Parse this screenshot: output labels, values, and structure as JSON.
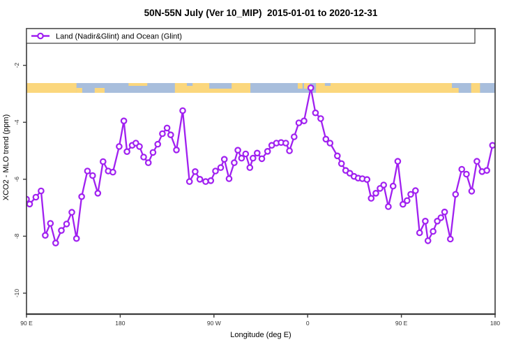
{
  "chart_data": {
    "type": "line",
    "title": "50N-55N July (Ver 10_MIP)  2015-01-01 to 2020-12-31",
    "xlabel": "Longitude (deg E)",
    "ylabel": "XCO2 - MLO trend (ppm)",
    "xlim": [
      90,
      540
    ],
    "ylim": [
      -10.7,
      -0.7
    ],
    "grid": "off",
    "x_ticks": [
      {
        "lon": 90,
        "label": "90 E"
      },
      {
        "lon": 180,
        "label": "180"
      },
      {
        "lon": 270,
        "label": "90 W"
      },
      {
        "lon": 360,
        "label": "0"
      },
      {
        "lon": 450,
        "label": "90 E"
      },
      {
        "lon": 540,
        "label": "180"
      }
    ],
    "y_ticks": [
      {
        "value": -2,
        "label": "-2"
      },
      {
        "value": -4,
        "label": "-4"
      },
      {
        "value": -6,
        "label": "-6"
      },
      {
        "value": -8,
        "label": "-8"
      },
      {
        "value": -10,
        "label": "-10"
      }
    ],
    "legend": {
      "position": "top",
      "entries": [
        {
          "label": "Land (Nadir&Glint) and Ocean (Glint)",
          "color": "#A020F0",
          "marker": "open-circle-line"
        }
      ]
    },
    "series": [
      {
        "name": "Land (Nadir&Glint) and Ocean (Glint)",
        "color": "#A020F0",
        "marker": "open-circle",
        "points": [
          [
            90,
            -6.7
          ],
          [
            93,
            -6.87
          ],
          [
            99,
            -6.63
          ],
          [
            104,
            -6.41
          ],
          [
            108,
            -7.97
          ],
          [
            113,
            -7.55
          ],
          [
            118,
            -8.24
          ],
          [
            123.5,
            -7.8
          ],
          [
            128.5,
            -7.57
          ],
          [
            133.5,
            -7.16
          ],
          [
            138,
            -8.08
          ],
          [
            143,
            -6.61
          ],
          [
            148.5,
            -5.71
          ],
          [
            153.5,
            -5.87
          ],
          [
            158.5,
            -6.49
          ],
          [
            163.5,
            -5.38
          ],
          [
            168.5,
            -5.71
          ],
          [
            173,
            -5.75
          ],
          [
            179,
            -4.85
          ],
          [
            183.5,
            -3.95
          ],
          [
            186.5,
            -5.03
          ],
          [
            191.5,
            -4.81
          ],
          [
            195,
            -4.73
          ],
          [
            198.5,
            -4.85
          ],
          [
            202.5,
            -5.22
          ],
          [
            207,
            -5.42
          ],
          [
            211.5,
            -5.06
          ],
          [
            216,
            -4.77
          ],
          [
            220.5,
            -4.4
          ],
          [
            225,
            -4.2
          ],
          [
            228.5,
            -4.44
          ],
          [
            234,
            -4.97
          ],
          [
            240,
            -3.59
          ],
          [
            246.5,
            -6.08
          ],
          [
            252,
            -5.73
          ],
          [
            256.5,
            -6.0
          ],
          [
            262,
            -6.08
          ],
          [
            267,
            -6.05
          ],
          [
            271.5,
            -5.71
          ],
          [
            276.5,
            -5.59
          ],
          [
            280,
            -5.3
          ],
          [
            284.5,
            -5.98
          ],
          [
            289.5,
            -5.42
          ],
          [
            293,
            -4.98
          ],
          [
            296.5,
            -5.26
          ],
          [
            300.5,
            -5.11
          ],
          [
            304.5,
            -5.59
          ],
          [
            307.5,
            -5.26
          ],
          [
            311.5,
            -5.08
          ],
          [
            316,
            -5.28
          ],
          [
            321.5,
            -5.02
          ],
          [
            325.5,
            -4.81
          ],
          [
            330,
            -4.73
          ],
          [
            334.5,
            -4.71
          ],
          [
            339,
            -4.73
          ],
          [
            342.5,
            -5.0
          ],
          [
            347,
            -4.51
          ],
          [
            351.5,
            -4.02
          ],
          [
            356.5,
            -3.95
          ],
          [
            363,
            -2.79
          ],
          [
            367.5,
            -3.67
          ],
          [
            372.5,
            -3.87
          ],
          [
            377.5,
            -4.59
          ],
          [
            381.5,
            -4.73
          ],
          [
            388.5,
            -5.18
          ],
          [
            392.5,
            -5.45
          ],
          [
            396.5,
            -5.69
          ],
          [
            400.5,
            -5.79
          ],
          [
            404.5,
            -5.9
          ],
          [
            408.5,
            -5.96
          ],
          [
            412.5,
            -5.98
          ],
          [
            417,
            -6.01
          ],
          [
            421,
            -6.67
          ],
          [
            425.5,
            -6.49
          ],
          [
            429.5,
            -6.32
          ],
          [
            433,
            -6.2
          ],
          [
            437.5,
            -6.96
          ],
          [
            442,
            -6.24
          ],
          [
            446.5,
            -5.37
          ],
          [
            451.5,
            -6.88
          ],
          [
            455.5,
            -6.75
          ],
          [
            459,
            -6.53
          ],
          [
            463.5,
            -6.4
          ],
          [
            467.5,
            -7.88
          ],
          [
            473,
            -7.47
          ],
          [
            475.5,
            -8.16
          ],
          [
            480.5,
            -7.83
          ],
          [
            484.5,
            -7.47
          ],
          [
            488,
            -7.35
          ],
          [
            491.5,
            -7.15
          ],
          [
            497,
            -8.1
          ],
          [
            502,
            -6.53
          ],
          [
            508,
            -5.65
          ],
          [
            512.5,
            -5.82
          ],
          [
            517.5,
            -6.42
          ],
          [
            522.5,
            -5.37
          ],
          [
            527.5,
            -5.73
          ],
          [
            532,
            -5.69
          ],
          [
            537.5,
            -4.81
          ]
        ]
      }
    ],
    "map_strip": {
      "description": "50N-55N latitude land/ocean strip",
      "land_color": "#FBD77D",
      "ocean_color": "#A8BEDC",
      "land_segments": [
        {
          "from": 90,
          "to": 138,
          "band": "full"
        },
        {
          "from": 138,
          "to": 143.5,
          "band": "south"
        },
        {
          "from": 155.5,
          "to": 165,
          "band": "south"
        },
        {
          "from": 188,
          "to": 206,
          "band": "north-sliver"
        },
        {
          "from": 232.5,
          "to": 305,
          "band": "full"
        },
        {
          "from": 350.5,
          "to": 355,
          "band": "north"
        },
        {
          "from": 356.5,
          "to": 362,
          "band": "north"
        },
        {
          "from": 368,
          "to": 498.5,
          "band": "full"
        },
        {
          "from": 498.5,
          "to": 505,
          "band": "south"
        },
        {
          "from": 517,
          "to": 525.5,
          "band": "full"
        }
      ],
      "ocean_overlays": [
        {
          "from": 244,
          "to": 249.5,
          "band": "north-sliver"
        },
        {
          "from": 265.5,
          "to": 287,
          "band": "north"
        },
        {
          "from": 376.5,
          "to": 382,
          "band": "north-sliver"
        }
      ]
    }
  },
  "colors": {
    "series": "#A020F0",
    "frame": "#3a3a3a",
    "tick_text": "#333333",
    "land": "#FBD77D",
    "ocean": "#A8BEDC",
    "background": "#ffffff"
  }
}
